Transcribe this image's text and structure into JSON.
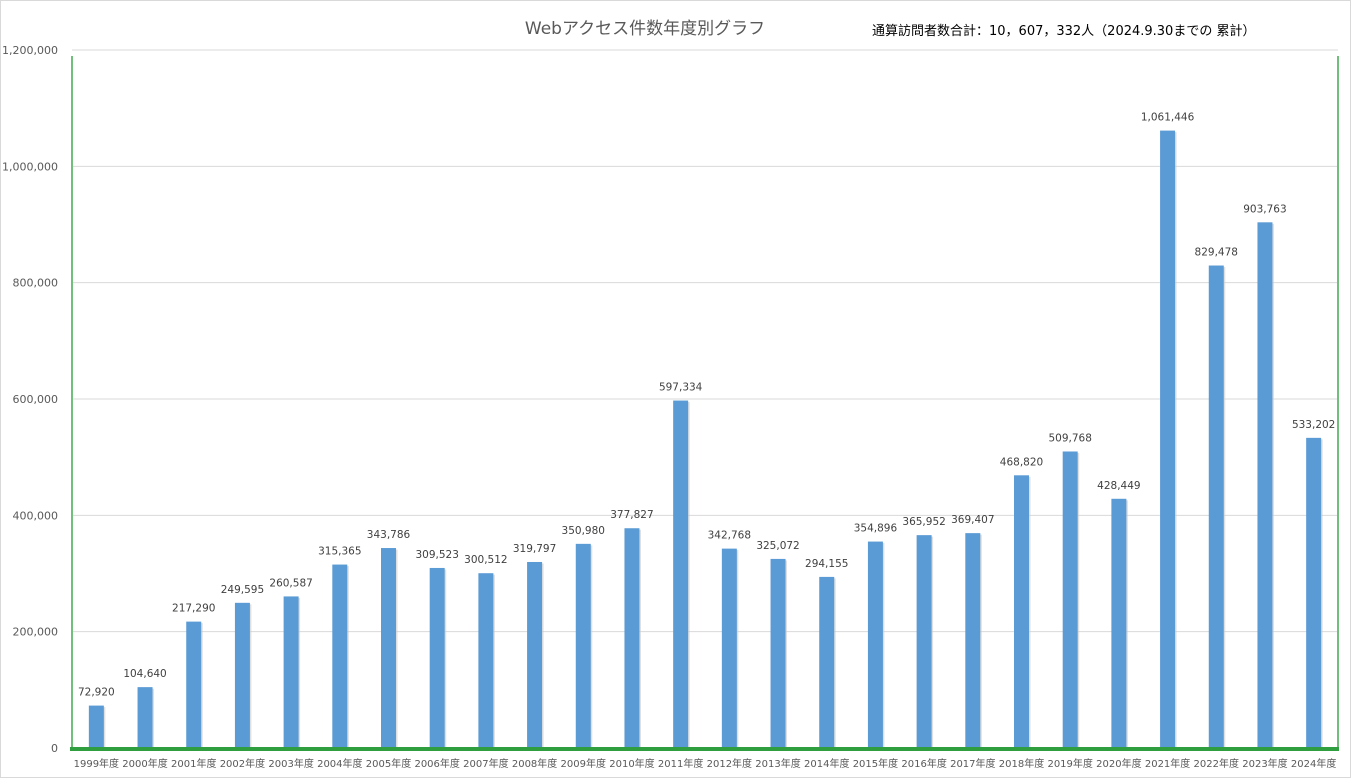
{
  "chart_data": {
    "type": "bar",
    "title": "Webアクセス件数年度別グラフ",
    "annotation": "通算訪問者数合計：10，607，332人（2024.9.30までの 累計）",
    "categories": [
      "1999年度",
      "2000年度",
      "2001年度",
      "2002年度",
      "2003年度",
      "2004年度",
      "2005年度",
      "2006年度",
      "2007年度",
      "2008年度",
      "2009年度",
      "2010年度",
      "2011年度",
      "2012年度",
      "2013年度",
      "2014年度",
      "2015年度",
      "2016年度",
      "2017年度",
      "2018年度",
      "2019年度",
      "2020年度",
      "2021年度",
      "2022年度",
      "2023年度",
      "2024年度"
    ],
    "values": [
      72920,
      104640,
      217290,
      249595,
      260587,
      315365,
      343786,
      309523,
      300512,
      319797,
      350980,
      377827,
      597334,
      342768,
      325072,
      294155,
      354896,
      365952,
      369407,
      468820,
      509768,
      428449,
      1061446,
      829478,
      903763,
      533202
    ],
    "value_labels": [
      "72,920",
      "104,640",
      "217,290",
      "249,595",
      "260,587",
      "315,365",
      "343,786",
      "309,523",
      "300,512",
      "319,797",
      "350,980",
      "377,827",
      "597,334",
      "342,768",
      "325,072",
      "294,155",
      "354,896",
      "365,952",
      "369,407",
      "468,820",
      "509,768",
      "428,449",
      "1,061,446",
      "829,478",
      "903,763",
      "533,202"
    ],
    "ylim": [
      0,
      1200000
    ],
    "yticks": [
      0,
      200000,
      400000,
      600000,
      800000,
      1000000,
      1200000
    ],
    "ytick_labels": [
      "0",
      "200,000",
      "400,000",
      "600,000",
      "800,000",
      "1,000,000",
      "1,200,000"
    ],
    "grid": true,
    "bar_color": "#5b9bd5",
    "plot_border_color": "#70c07a",
    "axis_color": "#2e9e3e"
  }
}
